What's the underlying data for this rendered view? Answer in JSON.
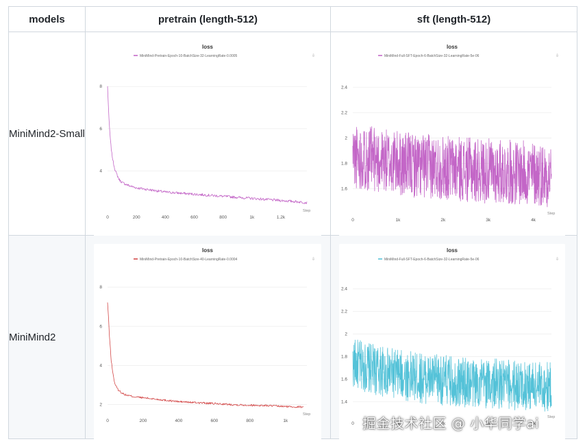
{
  "table": {
    "headers": [
      "models",
      "pretrain (length-512)",
      "sft (length-512)"
    ],
    "rows": [
      {
        "label": "MiniMind2-Small"
      },
      {
        "label": "MiniMind2"
      }
    ]
  },
  "watermark": "掘金技术社区 @ 小华同学ai",
  "chart_data": [
    {
      "type": "line",
      "id": "small-pretrain",
      "title": "loss",
      "legend": "MiniMind-Pretrain-Epoch-10-BatchSize-32-LearningRate-0.0005",
      "color": "#c05ec4",
      "xlim": [
        0,
        1380
      ],
      "ylim": [
        2.2,
        8.3
      ],
      "xticks": [
        0,
        200,
        400,
        600,
        800,
        1000,
        1200
      ],
      "xticklabels": [
        "0",
        "200",
        "400",
        "600",
        "800",
        "1k",
        "1.2k"
      ],
      "yticks": [
        4,
        6,
        8
      ],
      "yticklabels": [
        "4",
        "6",
        "8"
      ],
      "series": [
        {
          "x": [
            0,
            5,
            10,
            20,
            30,
            40,
            50,
            60,
            80,
            100,
            150,
            200,
            300,
            400,
            500,
            600,
            700,
            800,
            900,
            1000,
            1100,
            1200,
            1300,
            1380
          ],
          "y": [
            8.0,
            7.2,
            6.4,
            5.4,
            4.8,
            4.4,
            4.1,
            3.9,
            3.6,
            3.45,
            3.3,
            3.2,
            3.1,
            3.0,
            2.95,
            2.9,
            2.85,
            2.8,
            2.75,
            2.7,
            2.65,
            2.6,
            2.55,
            2.5
          ]
        }
      ]
    },
    {
      "type": "line",
      "id": "small-sft",
      "title": "loss",
      "legend": "MiniMind-Full-SFT-Epoch-6-BatchSize-32-LearningRate-5e-06",
      "color": "#c05ec4",
      "xlim": [
        0,
        4400
      ],
      "ylim": [
        1.42,
        2.52
      ],
      "xticks": [
        0,
        1000,
        2000,
        3000,
        4000
      ],
      "xticklabels": [
        "0",
        "1k",
        "2k",
        "3k",
        "4k"
      ],
      "yticks": [
        1.6,
        1.8,
        2,
        2.2,
        2.4
      ],
      "yticklabels": [
        "1.6",
        "1.8",
        "2",
        "2.2",
        "2.4"
      ],
      "series": [
        {
          "x": [
            0,
            500,
            1000,
            1500,
            2000,
            2500,
            3000,
            3500,
            4000,
            4400
          ],
          "y": [
            1.86,
            1.83,
            1.8,
            1.78,
            1.77,
            1.75,
            1.74,
            1.73,
            1.72,
            1.71
          ]
        }
      ]
    },
    {
      "type": "line",
      "id": "base-pretrain",
      "title": "loss",
      "legend": "MiniMind-Pretrain-Epoch-10-BatchSize-40-LearningRate-0.0004",
      "color": "#d13e3e",
      "xlim": [
        0,
        1120
      ],
      "ylim": [
        1.6,
        8.6
      ],
      "xticks": [
        0,
        200,
        400,
        600,
        800,
        1000
      ],
      "xticklabels": [
        "0",
        "200",
        "400",
        "600",
        "800",
        "1k"
      ],
      "yticks": [
        2,
        4,
        6,
        8
      ],
      "yticklabels": [
        "2",
        "4",
        "6",
        "8"
      ],
      "series": [
        {
          "x": [
            0,
            5,
            10,
            20,
            30,
            40,
            50,
            60,
            80,
            100,
            150,
            200,
            300,
            400,
            500,
            600,
            700,
            800,
            900,
            1000,
            1100
          ],
          "y": [
            7.2,
            6.5,
            5.6,
            4.3,
            3.6,
            3.1,
            2.9,
            2.75,
            2.6,
            2.5,
            2.4,
            2.35,
            2.25,
            2.15,
            2.1,
            2.05,
            2.0,
            1.97,
            1.95,
            1.9,
            1.88
          ]
        }
      ]
    },
    {
      "type": "line",
      "id": "base-sft",
      "title": "loss",
      "legend": "MiniMind-Full-SFT-Epoch-6-BatchSize-32-LearningRate-5e-06",
      "color": "#4bbfd6",
      "xlim": [
        0,
        4400
      ],
      "ylim": [
        1.28,
        2.52
      ],
      "xticks": [
        0,
        1000,
        2000,
        3000,
        4000
      ],
      "xticklabels": [
        "0",
        "1k",
        "2k",
        "3k",
        "4k"
      ],
      "yticks": [
        1.4,
        1.6,
        1.8,
        2,
        2.2,
        2.4
      ],
      "yticklabels": [
        "1.4",
        "1.6",
        "1.8",
        "2",
        "2.2",
        "2.4"
      ],
      "series": [
        {
          "x": [
            0,
            500,
            1000,
            1500,
            2000,
            2500,
            3000,
            3500,
            4000,
            4400
          ],
          "y": [
            1.74,
            1.68,
            1.64,
            1.61,
            1.59,
            1.57,
            1.56,
            1.55,
            1.54,
            1.53
          ]
        }
      ]
    }
  ]
}
